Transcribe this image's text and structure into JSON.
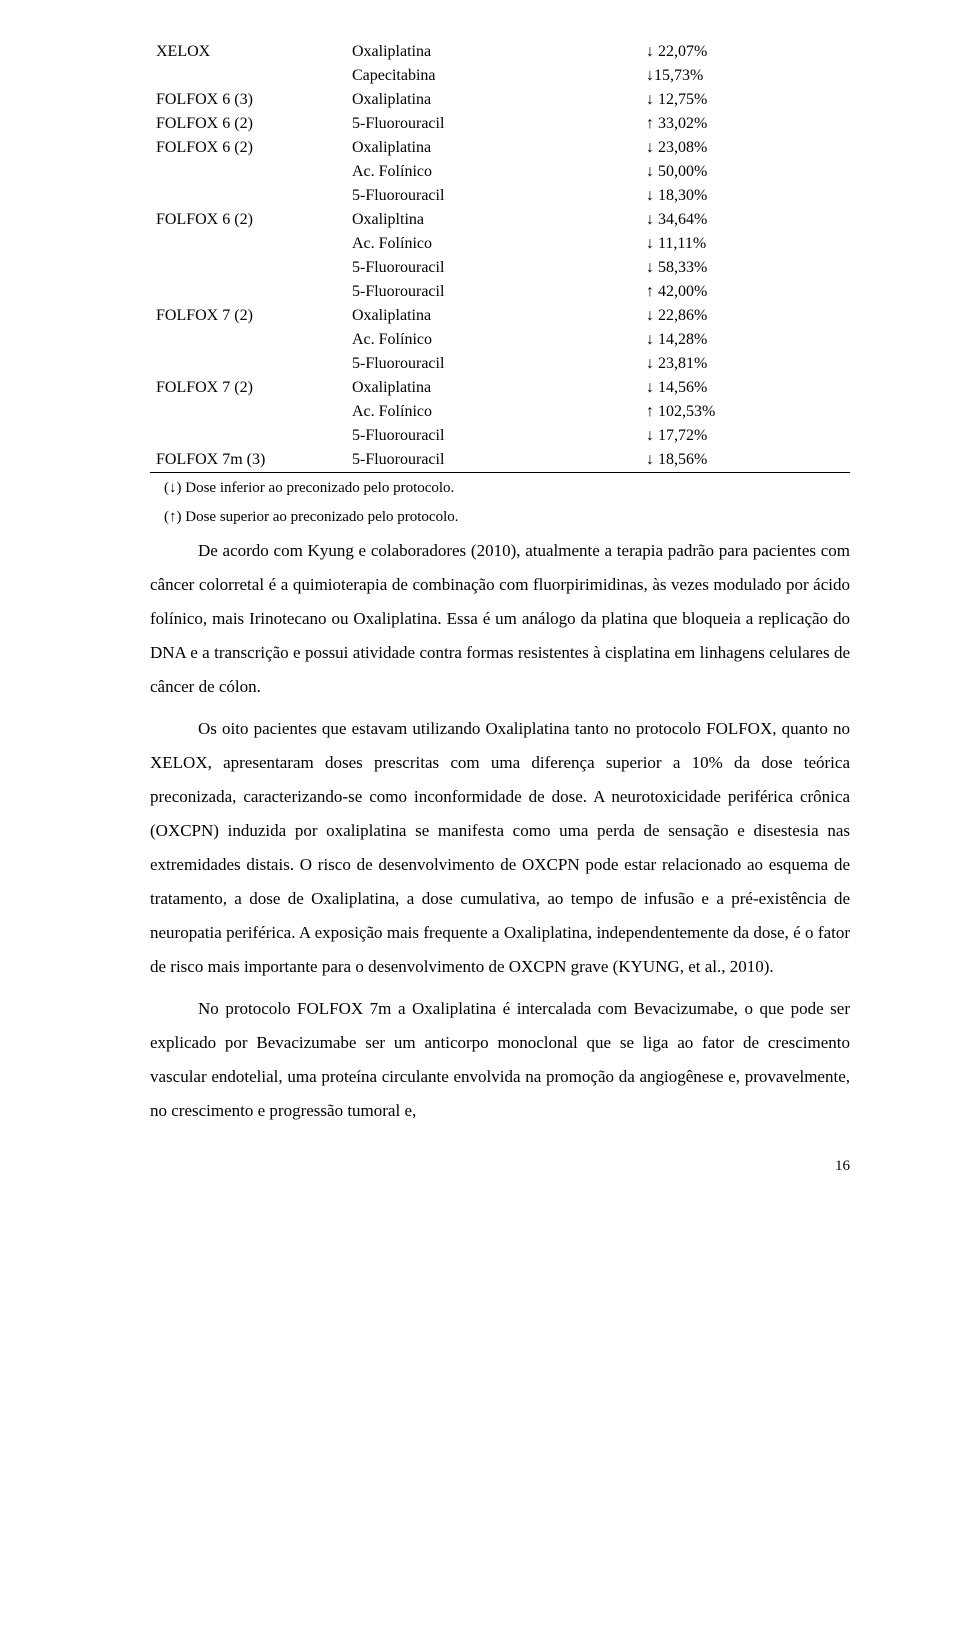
{
  "table": {
    "rows": [
      {
        "scheme": "XELOX",
        "drug": "Oxaliplatina",
        "pct": "↓ 22,07%"
      },
      {
        "scheme": "",
        "drug": "Capecitabina",
        "pct": "↓15,73%"
      },
      {
        "scheme": "FOLFOX 6 (3)",
        "drug": "Oxaliplatina",
        "pct": "↓ 12,75%"
      },
      {
        "scheme": "FOLFOX 6 (2)",
        "drug": "5-Fluorouracil",
        "pct": "↑ 33,02%"
      },
      {
        "scheme": "FOLFOX 6 (2)",
        "drug": "Oxaliplatina",
        "pct": "↓ 23,08%"
      },
      {
        "scheme": "",
        "drug": "Ac. Folínico",
        "pct": "↓ 50,00%"
      },
      {
        "scheme": "",
        "drug": "5-Fluorouracil",
        "pct": "↓ 18,30%"
      },
      {
        "scheme": "FOLFOX 6 (2)",
        "drug": "Oxalipltina",
        "pct": "↓ 34,64%"
      },
      {
        "scheme": "",
        "drug": "Ac. Folínico",
        "pct": "↓ 11,11%"
      },
      {
        "scheme": "",
        "drug": "5-Fluorouracil",
        "pct": "↓ 58,33%"
      },
      {
        "scheme": "",
        "drug": "5-Fluorouracil",
        "pct": "↑ 42,00%"
      },
      {
        "scheme": "FOLFOX 7 (2)",
        "drug": "Oxaliplatina",
        "pct": "↓ 22,86%"
      },
      {
        "scheme": "",
        "drug": "Ac. Folínico",
        "pct": "↓ 14,28%"
      },
      {
        "scheme": "",
        "drug": "5-Fluorouracil",
        "pct": "↓ 23,81%"
      },
      {
        "scheme": "FOLFOX 7 (2)",
        "drug": "Oxaliplatina",
        "pct": "↓ 14,56%"
      },
      {
        "scheme": "",
        "drug": "Ac. Folínico",
        "pct": "↑ 102,53%"
      },
      {
        "scheme": "",
        "drug": "5-Fluorouracil",
        "pct": "↓ 17,72%"
      },
      {
        "scheme": "FOLFOX 7m (3)",
        "drug": "5-Fluorouracil",
        "pct": "↓ 18,56%"
      }
    ]
  },
  "footnote_down": "(↓) Dose inferior ao preconizado pelo protocolo.",
  "footnote_up": "(↑) Dose superior ao preconizado pelo protocolo.",
  "p1": "De acordo com Kyung e colaboradores (2010), atualmente a terapia padrão para pacientes com câncer colorretal é a quimioterapia de combinação com fluorpirimidinas, às vezes modulado por ácido folínico, mais Irinotecano ou Oxaliplatina. Essa é um análogo da platina que bloqueia a replicação do DNA e a transcrição e possui atividade contra formas resistentes à cisplatina em linhagens celulares de câncer de cólon.",
  "p2": "Os oito pacientes que estavam utilizando Oxaliplatina tanto no protocolo FOLFOX, quanto no XELOX, apresentaram doses prescritas com uma diferença superior a 10% da dose teórica preconizada, caracterizando-se como inconformidade de dose. A neurotoxicidade periférica crônica (OXCPN) induzida por oxaliplatina se manifesta como uma perda de sensação e disestesia nas extremidades distais. O risco de desenvolvimento de OXCPN pode estar relacionado ao esquema de tratamento, a dose de Oxaliplatina, a dose cumulativa, ao tempo de infusão e a pré-existência de neuropatia periférica. A exposição mais frequente a Oxaliplatina, independentemente da dose, é o fator de risco mais importante para o desenvolvimento de OXCPN grave (KYUNG, et al., 2010).",
  "p3": "No protocolo FOLFOX 7m a Oxaliplatina é intercalada com Bevacizumabe, o que pode ser explicado por Bevacizumabe ser um anticorpo monoclonal que se liga ao fator de crescimento vascular endotelial, uma proteína circulante envolvida na promoção da angiogênese e, provavelmente, no crescimento e progressão tumoral e,",
  "page_number": "16"
}
